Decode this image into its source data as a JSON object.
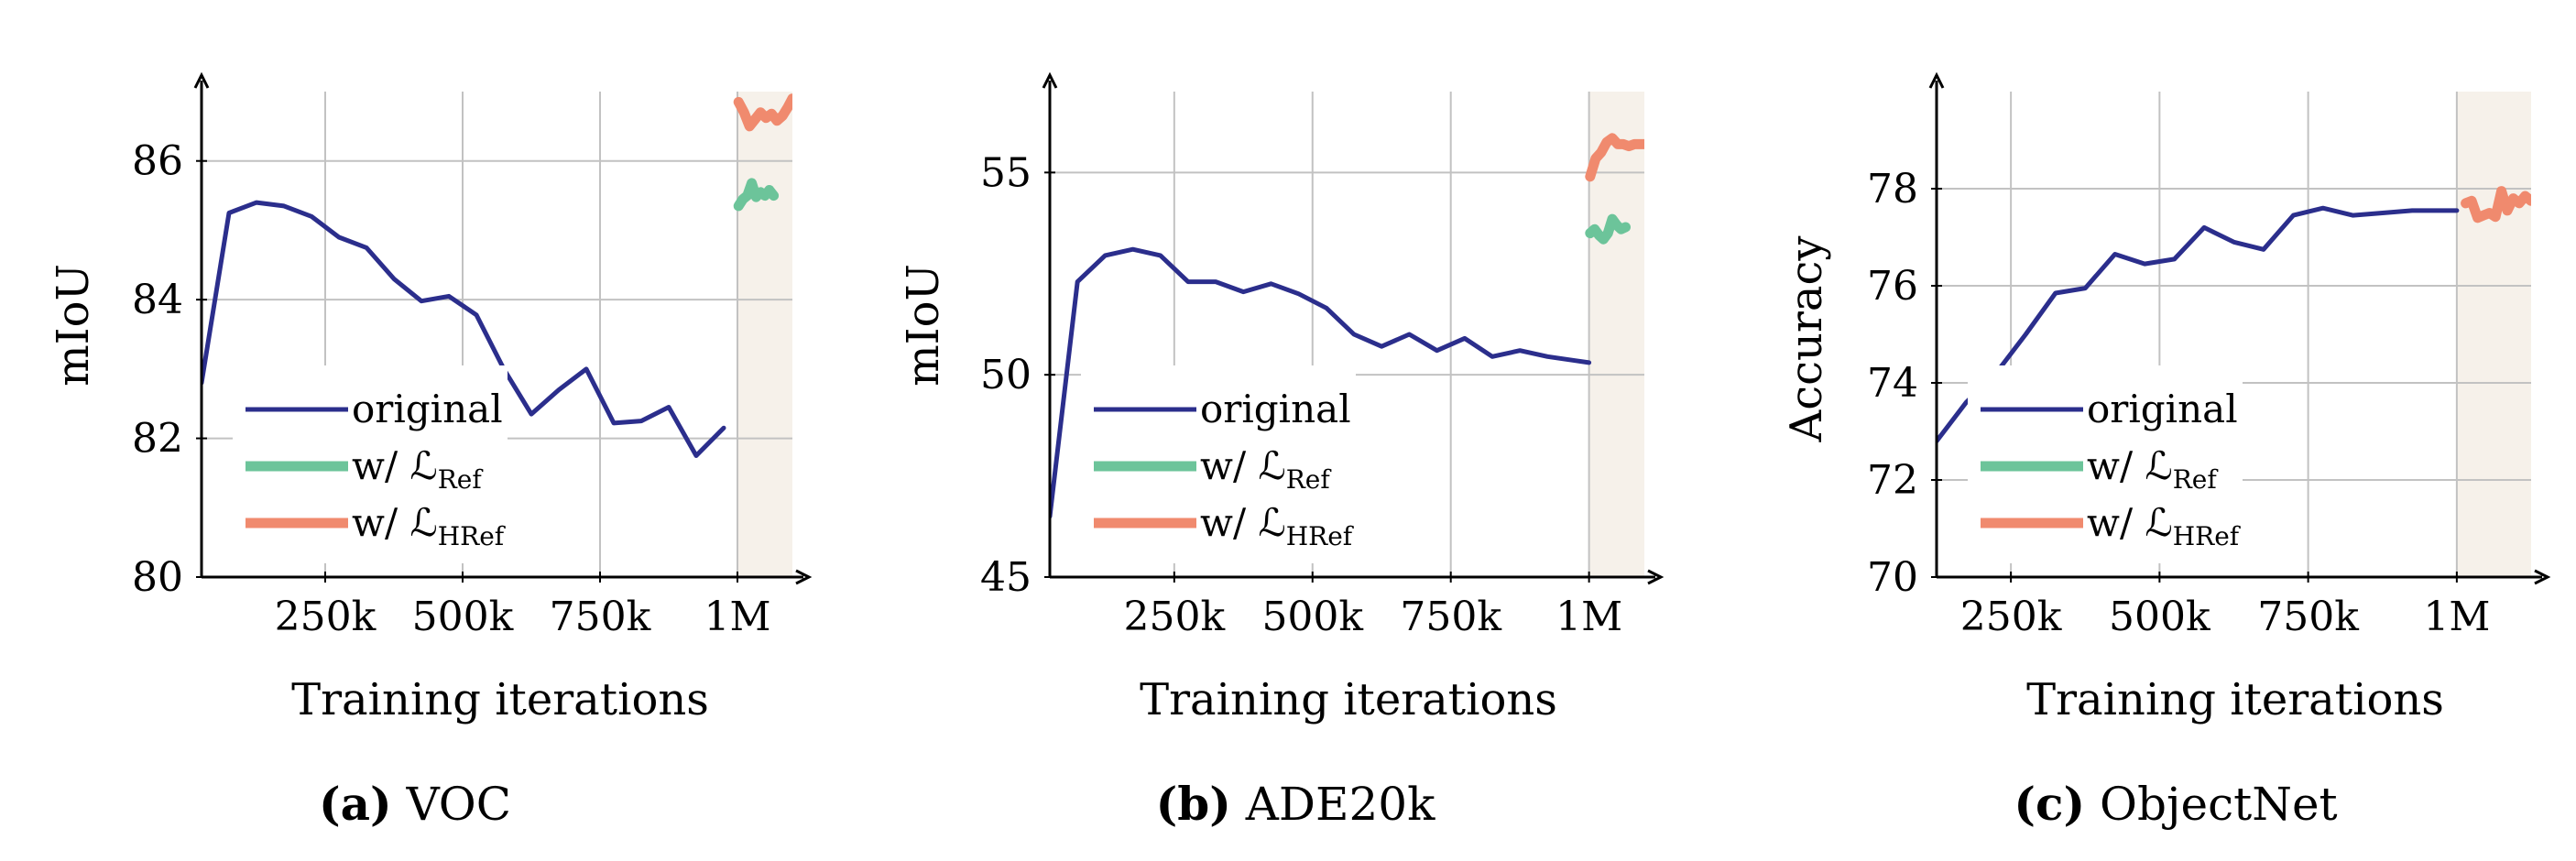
{
  "colors": {
    "original": "#2b2e8c",
    "ref": "#6cc49a",
    "href": "#f08a6e",
    "shade": "#f6f1ea",
    "grid": "#c2c2c2"
  },
  "legend": {
    "original": "original",
    "ref_prefix": "w/ ",
    "ref_symbol": "ℒ",
    "ref_sub": "Ref",
    "href_prefix": "w/ ",
    "href_symbol": "ℒ",
    "href_sub": "HRef"
  },
  "chart_data": [
    {
      "type": "line",
      "caption_tag": "(a)",
      "caption_text": "VOC",
      "xlabel": "Training iterations",
      "ylabel": "mIoU",
      "xlim": [
        25000,
        1100000
      ],
      "ylim": [
        80,
        87
      ],
      "xticks": [
        250000,
        500000,
        750000,
        1000000
      ],
      "xtick_labels": [
        "250k",
        "500k",
        "750k",
        "1M"
      ],
      "yticks": [
        80,
        82,
        84,
        86
      ],
      "ytick_labels": [
        "80",
        "82",
        "84",
        "86"
      ],
      "grid": true,
      "shade_from": 1000000,
      "legend_position": "lower-left",
      "series": [
        {
          "name": "original",
          "x": [
            25000,
            75000,
            125000,
            175000,
            225000,
            275000,
            325000,
            375000,
            425000,
            475000,
            525000,
            575000,
            625000,
            675000,
            725000,
            775000,
            825000,
            875000,
            925000,
            975000
          ],
          "y": [
            82.8,
            85.25,
            85.4,
            85.35,
            85.2,
            84.9,
            84.75,
            84.3,
            83.98,
            84.05,
            83.78,
            83.0,
            82.35,
            82.7,
            83.0,
            82.22,
            82.25,
            82.45,
            81.75,
            82.15
          ]
        },
        {
          "name": "w/ LRef",
          "x": [
            1002000,
            1010000,
            1018000,
            1026000,
            1034000,
            1042000,
            1050000,
            1058000,
            1066000
          ],
          "y": [
            85.35,
            85.45,
            85.5,
            85.68,
            85.48,
            85.55,
            85.5,
            85.58,
            85.5
          ]
        },
        {
          "name": "w/ LHRef",
          "x": [
            1002000,
            1012000,
            1022000,
            1032000,
            1042000,
            1052000,
            1062000,
            1072000,
            1082000,
            1092000,
            1100000
          ],
          "y": [
            86.85,
            86.7,
            86.5,
            86.6,
            86.7,
            86.62,
            86.68,
            86.58,
            86.65,
            86.78,
            86.9
          ]
        }
      ]
    },
    {
      "type": "line",
      "caption_tag": "(b)",
      "caption_text": "ADE20k",
      "xlabel": "Training iterations",
      "ylabel": "mIoU",
      "xlim": [
        25000,
        1100000
      ],
      "ylim": [
        45,
        57
      ],
      "xticks": [
        250000,
        500000,
        750000,
        1000000
      ],
      "xtick_labels": [
        "250k",
        "500k",
        "750k",
        "1M"
      ],
      "yticks": [
        45,
        50,
        55
      ],
      "ytick_labels": [
        "45",
        "50",
        "55"
      ],
      "grid": true,
      "shade_from": 1000000,
      "legend_position": "lower-left",
      "series": [
        {
          "name": "original",
          "x": [
            25000,
            75000,
            125000,
            175000,
            225000,
            275000,
            325000,
            375000,
            425000,
            475000,
            525000,
            575000,
            625000,
            675000,
            725000,
            775000,
            825000,
            875000,
            925000,
            975000,
            1000000
          ],
          "y": [
            46.5,
            52.3,
            52.95,
            53.1,
            52.95,
            52.3,
            52.3,
            52.05,
            52.25,
            52.0,
            51.65,
            51.0,
            50.7,
            51.0,
            50.6,
            50.9,
            50.45,
            50.6,
            50.45,
            50.35,
            50.3
          ]
        },
        {
          "name": "w/ LRef",
          "x": [
            1002000,
            1010000,
            1018000,
            1026000,
            1034000,
            1042000,
            1050000,
            1058000,
            1066000
          ],
          "y": [
            53.5,
            53.6,
            53.45,
            53.35,
            53.5,
            53.85,
            53.7,
            53.6,
            53.65
          ]
        },
        {
          "name": "w/ LHRef",
          "x": [
            1002000,
            1012000,
            1022000,
            1032000,
            1042000,
            1052000,
            1062000,
            1072000,
            1082000,
            1092000,
            1100000
          ],
          "y": [
            54.9,
            55.35,
            55.5,
            55.75,
            55.85,
            55.7,
            55.7,
            55.65,
            55.7,
            55.7,
            55.7
          ]
        }
      ]
    },
    {
      "type": "line",
      "caption_tag": "(c)",
      "caption_text": "ObjectNet",
      "xlabel": "Training iterations",
      "ylabel": "Accuracy",
      "xlim": [
        125000,
        1125000
      ],
      "ylim": [
        70,
        80
      ],
      "xticks": [
        250000,
        500000,
        750000,
        1000000
      ],
      "xtick_labels": [
        "250k",
        "500k",
        "750k",
        "1M"
      ],
      "yticks": [
        70,
        72,
        74,
        76,
        78
      ],
      "ytick_labels": [
        "70",
        "72",
        "74",
        "76",
        "78"
      ],
      "grid": true,
      "shade_from": 1000000,
      "legend_position": "lower-left",
      "series": [
        {
          "name": "original",
          "x": [
            125000,
            175000,
            225000,
            275000,
            325000,
            375000,
            425000,
            475000,
            525000,
            575000,
            625000,
            675000,
            725000,
            775000,
            825000,
            875000,
            925000,
            975000,
            1000000
          ],
          "y": [
            72.8,
            73.6,
            74.2,
            75.0,
            75.85,
            75.95,
            76.65,
            76.45,
            76.55,
            77.2,
            76.9,
            76.75,
            77.45,
            77.6,
            77.45,
            77.5,
            77.55,
            77.55,
            77.55
          ]
        },
        {
          "name": "w/ LHRef",
          "x": [
            1015000,
            1025000,
            1035000,
            1045000,
            1055000,
            1065000,
            1075000,
            1085000,
            1095000,
            1105000,
            1115000,
            1125000
          ],
          "y": [
            77.7,
            77.75,
            77.4,
            77.45,
            77.5,
            77.42,
            77.95,
            77.55,
            77.8,
            77.7,
            77.85,
            77.75
          ]
        }
      ]
    }
  ]
}
